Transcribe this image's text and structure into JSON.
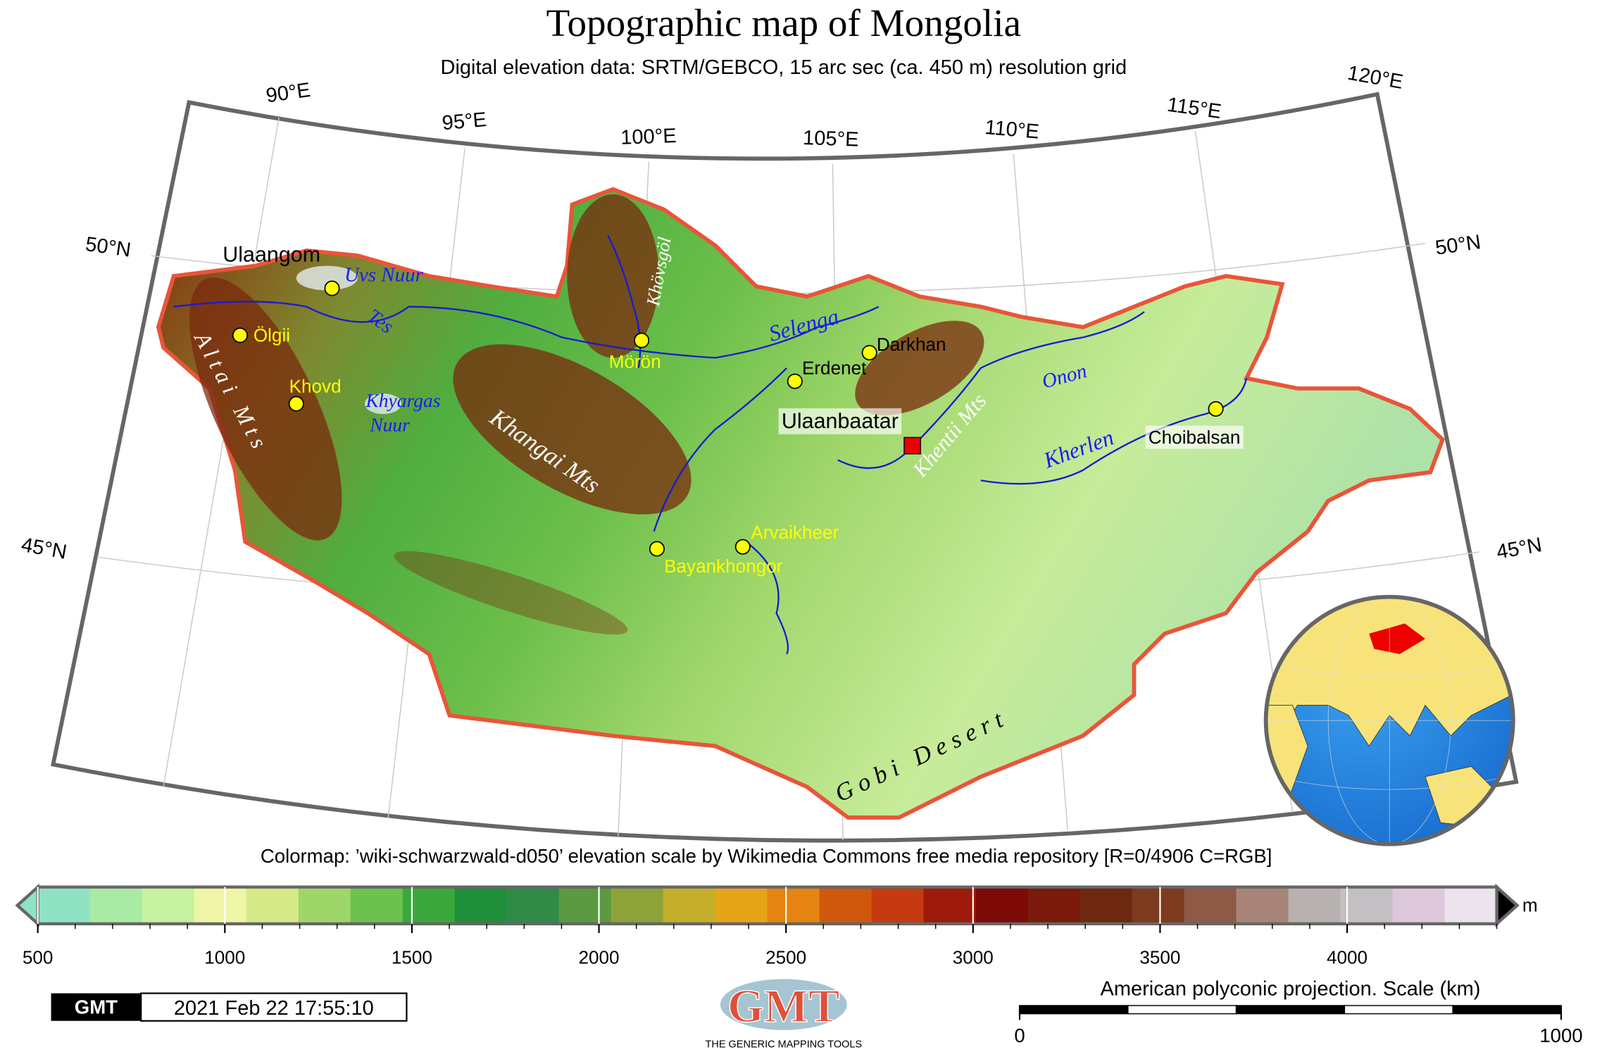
{
  "header": {
    "title": "Topographic map of Mongolia",
    "subtitle": "Digital elevation data: SRTM/GEBCO, 15 arc sec (ca. 450 m) resolution grid"
  },
  "graticule": {
    "longitudes": [
      "90°E",
      "95°E",
      "100°E",
      "105°E",
      "110°E",
      "115°E",
      "120°E"
    ],
    "latitudes_left": [
      "50°N",
      "45°N"
    ],
    "latitudes_right": [
      "50°N",
      "45°N"
    ]
  },
  "places": [
    {
      "label": "Ulaangom",
      "color": "#000000"
    },
    {
      "label": "Ölgii",
      "color": "#ffff00"
    },
    {
      "label": "Khovd",
      "color": "#ffff00"
    },
    {
      "label": "Mörön",
      "color": "#ffff00"
    },
    {
      "label": "Erdenet",
      "color": "#000000"
    },
    {
      "label": "Darkhan",
      "color": "#000000"
    },
    {
      "label": "Ulaanbaatar",
      "color": "#000000"
    },
    {
      "label": "Choibalsan",
      "color": "#000000"
    },
    {
      "label": "Arvaikheer",
      "color": "#ffff00"
    },
    {
      "label": "Bayankhongor",
      "color": "#ffff00"
    }
  ],
  "features": [
    {
      "label": "Uvs Nuur",
      "color": "#1a1aff"
    },
    {
      "label": "Tes",
      "color": "#1a1aff"
    },
    {
      "label": "Khyargas",
      "color": "#1a1aff"
    },
    {
      "label": "Nuur",
      "color": "#1a1aff"
    },
    {
      "label": "Selenga",
      "color": "#1a1aff"
    },
    {
      "label": "Onon",
      "color": "#1a1aff"
    },
    {
      "label": "Kherlen",
      "color": "#1a1aff"
    },
    {
      "label": "Khövsgöl",
      "color": "#ffffff"
    },
    {
      "label": "A l t a i   M t s",
      "color": "#ffffff"
    },
    {
      "label": "Khangai Mts",
      "color": "#ffffff"
    },
    {
      "label": "Khentii Mts",
      "color": "#ffffff"
    },
    {
      "label": "G o b i   D e s e r t",
      "color": "#000000"
    }
  ],
  "colorbar": {
    "caption": "Colormap: ’wiki-schwarzwald-d050’ elevation scale by Wikimedia Commons free media repository [R=0/4906 C=RGB]",
    "unit": "m",
    "range": [
      500,
      4400
    ],
    "ticks": [
      500,
      1000,
      1500,
      2000,
      2500,
      3000,
      3500,
      4000
    ],
    "colors": [
      "#8fe3c4",
      "#a9eaa4",
      "#c6f2a0",
      "#eef5a6",
      "#d7ea8a",
      "#9fd66a",
      "#6cc24f",
      "#3aa83a",
      "#1f8f3a",
      "#2f8b45",
      "#5b9a40",
      "#8da33a",
      "#c5ae2a",
      "#e6a418",
      "#e58410",
      "#d0580c",
      "#c53a10",
      "#9e1a0a",
      "#7e0a05",
      "#7a1a0c",
      "#6e2810",
      "#7c3a1e",
      "#8d5a45",
      "#a88478",
      "#b7b2b0",
      "#c4bfc2",
      "#dcc8da",
      "#ece4ec"
    ]
  },
  "stamp": {
    "logo": "GMT",
    "time": "2021 Feb 22 17:55:10"
  },
  "logo": {
    "mark": "GMT",
    "tagline": "THE GENERIC MAPPING TOOLS"
  },
  "scale_bar": {
    "title": "American polyconic projection. Scale (km)",
    "range": [
      0,
      1000
    ],
    "ticks": [
      0,
      1000
    ]
  }
}
